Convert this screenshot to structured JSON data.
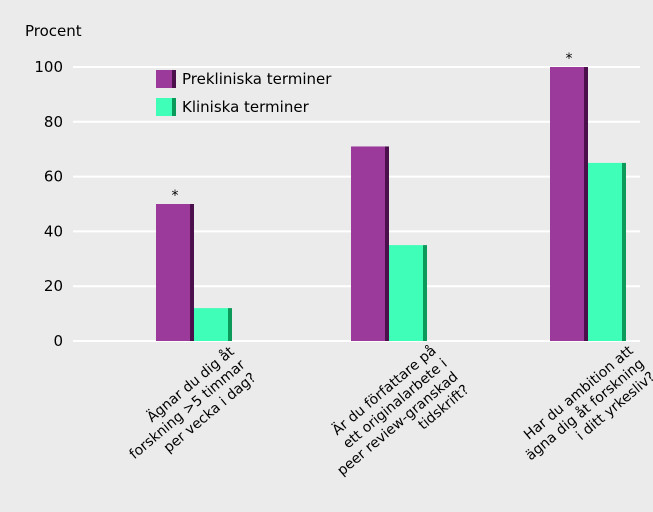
{
  "chart_data": {
    "type": "bar",
    "ylabel": "Procent",
    "ylim": [
      0,
      100
    ],
    "yticks": [
      0,
      20,
      40,
      60,
      80,
      100
    ],
    "grid": true,
    "legend_position": "top-left",
    "categories": [
      [
        "Ägnar du dig åt",
        "forskning >5 timmar",
        "per vecka i dag?"
      ],
      [
        "Är du författare på",
        "ett originalarbete i",
        "peer review-granskad",
        "tidskrift?"
      ],
      [
        "Har du ambition att",
        "ägna dig åt forskning",
        "i ditt yrkesliv?"
      ]
    ],
    "series": [
      {
        "name": "Prekliniska terminer",
        "values": [
          50,
          71,
          100
        ],
        "color": "#9b3a9b",
        "shade": "#4b0f4b"
      },
      {
        "name": "Kliniska terminer",
        "values": [
          12,
          35,
          65
        ],
        "color": "#3fffb8",
        "shade": "#0c9a5a"
      }
    ],
    "annotations": [
      {
        "category": 0,
        "series": 0,
        "text": "*"
      },
      {
        "category": 2,
        "series": 0,
        "text": "*"
      }
    ]
  }
}
